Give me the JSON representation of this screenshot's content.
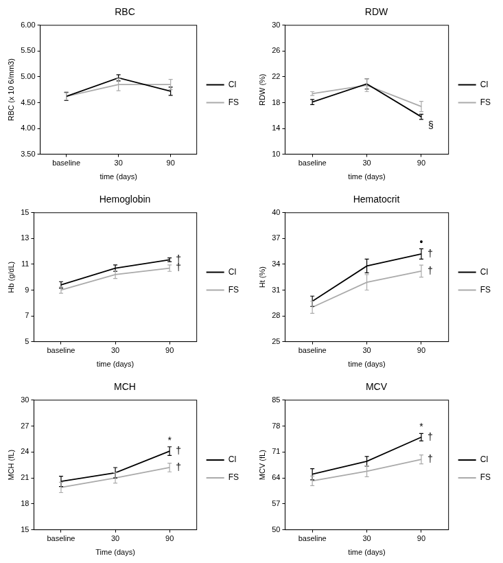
{
  "chart_data": [
    {
      "type": "line",
      "title": "RBC",
      "x_label": "time (days)",
      "y_label": "RBC (x 10 6/mm3)",
      "categories": [
        "baseline",
        "30",
        "90"
      ],
      "ylim": [
        3.5,
        6.0
      ],
      "yticks": [
        {
          "value": 3.5,
          "label": "3.50"
        },
        {
          "value": 4.0,
          "label": "4.00"
        },
        {
          "value": 4.5,
          "label": "4.50"
        },
        {
          "value": 5.0,
          "label": "5.00"
        },
        {
          "value": 5.5,
          "label": "5.50"
        },
        {
          "value": 6.0,
          "label": "6.00"
        }
      ],
      "grid": false,
      "legend": "right",
      "series": [
        {
          "name": "CI",
          "color": "#000000",
          "values": [
            4.62,
            4.98,
            4.72
          ],
          "errors": [
            0.08,
            0.06,
            0.08
          ]
        },
        {
          "name": "FS",
          "color": "#aaaaaa",
          "values": [
            4.62,
            4.85,
            4.85
          ],
          "errors": [
            0.07,
            0.12,
            0.1
          ]
        }
      ],
      "annotations": []
    },
    {
      "type": "line",
      "title": "RDW",
      "x_label": "time (days)",
      "y_label": "RDW (%)",
      "categories": [
        "baseline",
        "30",
        "90"
      ],
      "ylim": [
        10,
        30
      ],
      "yticks": [
        10,
        14,
        18,
        22,
        26,
        30
      ],
      "grid": false,
      "legend": "right",
      "series": [
        {
          "name": "CI",
          "color": "#000000",
          "values": [
            18.1,
            20.9,
            15.8
          ],
          "errors": [
            0.4,
            0.8,
            0.4
          ]
        },
        {
          "name": "FS",
          "color": "#aaaaaa",
          "values": [
            19.4,
            20.7,
            17.4
          ],
          "errors": [
            0.3,
            1.0,
            0.8
          ]
        }
      ],
      "annotations": [
        {
          "text": "§",
          "series": "CI",
          "category": "90",
          "position": "below"
        }
      ]
    },
    {
      "type": "line",
      "title": "Hemoglobin",
      "x_label": "time (days)",
      "y_label": "Hb (g/dL)",
      "categories": [
        "baseline",
        "30",
        "90"
      ],
      "ylim": [
        5,
        15
      ],
      "yticks": [
        5,
        7,
        9,
        11,
        13,
        15
      ],
      "grid": false,
      "legend": "right",
      "series": [
        {
          "name": "CI",
          "color": "#000000",
          "values": [
            9.4,
            10.7,
            11.35
          ],
          "errors": [
            0.25,
            0.25,
            0.15
          ]
        },
        {
          "name": "FS",
          "color": "#aaaaaa",
          "values": [
            9.0,
            10.2,
            10.7
          ],
          "errors": [
            0.25,
            0.3,
            0.25
          ]
        }
      ],
      "annotations": [
        {
          "text": "†",
          "series": "CI",
          "category": "90",
          "position": "right"
        },
        {
          "text": "†",
          "series": "FS",
          "category": "90",
          "position": "right"
        }
      ]
    },
    {
      "type": "line",
      "title": "Hematocrit",
      "x_label": "time (days)",
      "y_label": "Ht (%)",
      "categories": [
        "baseline",
        "30",
        "90"
      ],
      "ylim": [
        25,
        40
      ],
      "yticks": [
        25,
        28,
        31,
        34,
        37,
        40
      ],
      "grid": false,
      "legend": "right",
      "series": [
        {
          "name": "CI",
          "color": "#000000",
          "values": [
            29.7,
            33.8,
            35.2
          ],
          "errors": [
            0.6,
            0.8,
            0.6
          ]
        },
        {
          "name": "FS",
          "color": "#aaaaaa",
          "values": [
            29.0,
            31.9,
            33.2
          ],
          "errors": [
            0.7,
            0.9,
            0.7
          ]
        }
      ],
      "annotations": [
        {
          "text": "•",
          "series": "CI",
          "category": "90",
          "position": "above"
        },
        {
          "text": "†",
          "series": "CI",
          "category": "90",
          "position": "right"
        },
        {
          "text": "†",
          "series": "FS",
          "category": "90",
          "position": "right"
        }
      ]
    },
    {
      "type": "line",
      "title": "MCH",
      "x_label": "Time (days)",
      "y_label": "MCH (fL)",
      "categories": [
        "baseline",
        "30",
        "90"
      ],
      "ylim": [
        15,
        30
      ],
      "yticks": [
        15,
        18,
        21,
        24,
        27,
        30
      ],
      "grid": false,
      "legend": "right",
      "series": [
        {
          "name": "CI",
          "color": "#000000",
          "values": [
            20.6,
            21.6,
            24.1
          ],
          "errors": [
            0.6,
            0.6,
            0.5
          ]
        },
        {
          "name": "FS",
          "color": "#aaaaaa",
          "values": [
            19.9,
            21.0,
            22.2
          ],
          "errors": [
            0.6,
            0.6,
            0.5
          ]
        }
      ],
      "annotations": [
        {
          "text": "*",
          "series": "CI",
          "category": "90",
          "position": "above"
        },
        {
          "text": "†",
          "series": "CI",
          "category": "90",
          "position": "right"
        },
        {
          "text": "†",
          "series": "FS",
          "category": "90",
          "position": "right"
        }
      ]
    },
    {
      "type": "line",
      "title": "MCV",
      "x_label": "time (days)",
      "y_label": "MCV (fL)",
      "categories": [
        "baseline",
        "30",
        "90"
      ],
      "ylim": [
        50,
        85
      ],
      "yticks": [
        50,
        57,
        64,
        71,
        78,
        85
      ],
      "grid": false,
      "legend": "right",
      "series": [
        {
          "name": "CI",
          "color": "#000000",
          "values": [
            65.0,
            68.5,
            75.0
          ],
          "errors": [
            1.5,
            1.3,
            1.0
          ]
        },
        {
          "name": "FS",
          "color": "#aaaaaa",
          "values": [
            63.2,
            65.8,
            69.0
          ],
          "errors": [
            1.3,
            1.5,
            1.2
          ]
        }
      ],
      "annotations": [
        {
          "text": "*",
          "series": "CI",
          "category": "90",
          "position": "above"
        },
        {
          "text": "†",
          "series": "CI",
          "category": "90",
          "position": "right"
        },
        {
          "text": "†",
          "series": "FS",
          "category": "90",
          "position": "right"
        }
      ]
    }
  ]
}
